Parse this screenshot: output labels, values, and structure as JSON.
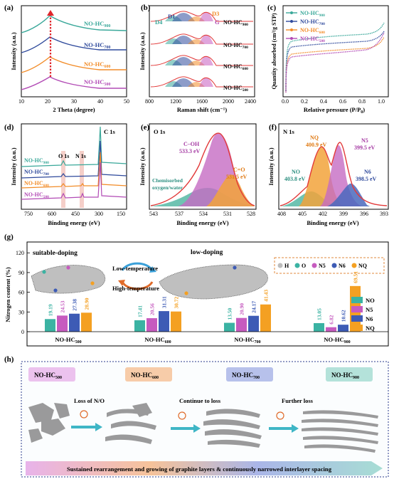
{
  "colors": {
    "hc500": "#b24bb5",
    "hc600": "#f28c28",
    "hc700": "#2f4a9c",
    "hc900": "#3aa89a",
    "NO": "#3bb3a3",
    "N5": "#c65bbf",
    "N6": "#3d5bb5",
    "NQ": "#f4a022",
    "fit": "#e23a3a"
  },
  "panel_a": {
    "letter": "(a)",
    "xlabel": "2 Theta (degree)",
    "ylabel": "Intensity (a.u.)",
    "xticks": [
      "10",
      "20",
      "30",
      "40",
      "50"
    ],
    "labels": [
      {
        "base": "NO-HC",
        "sub": "900"
      },
      {
        "base": "NO-HC",
        "sub": "700"
      },
      {
        "base": "NO-HC",
        "sub": "600"
      },
      {
        "base": "NO-HC",
        "sub": "500"
      }
    ]
  },
  "panel_b": {
    "letter": "(b)",
    "xlabel": "Raman shift (cm⁻¹)",
    "ylabel": "Intensity (a.u.)",
    "xticks": [
      "800",
      "1200",
      "1600",
      "2000",
      "2400"
    ],
    "peaks": [
      "D1",
      "D3",
      "D4",
      "G"
    ],
    "labels": [
      {
        "base": "NO-HC",
        "sub": "900"
      },
      {
        "base": "NO-HC",
        "sub": "700"
      },
      {
        "base": "NO-HC",
        "sub": "600"
      },
      {
        "base": "NO-HC",
        "sub": "500"
      }
    ]
  },
  "panel_c": {
    "letter": "(c)",
    "xlabel": "Relative pressure (P/P",
    "xlabel_sub": "0",
    "xlabel_end": ")",
    "ylabel": "Quantity absorbed (cm³/g STP)",
    "xticks": [
      "0.0",
      "0.2",
      "0.4",
      "0.6",
      "0.8",
      "1.0"
    ],
    "legend": [
      {
        "base": "NO-HC",
        "sub": "900"
      },
      {
        "base": "NO-HC",
        "sub": "700"
      },
      {
        "base": "NO-HC",
        "sub": "600"
      },
      {
        "base": "NO-HC",
        "sub": "500"
      }
    ]
  },
  "panel_d": {
    "letter": "(d)",
    "xlabel": "Binding energy (eV)",
    "ylabel": "Intensity (a.u.)",
    "xticks": [
      "750",
      "600",
      "450",
      "300",
      "150"
    ],
    "peaks": [
      "O 1s",
      "N 1s",
      "C 1s"
    ],
    "labels": [
      {
        "base": "NO-HC",
        "sub": "900"
      },
      {
        "base": "NO-HC",
        "sub": "700"
      },
      {
        "base": "NO-HC",
        "sub": "600"
      },
      {
        "base": "NO-HC",
        "sub": "500"
      }
    ]
  },
  "panel_e": {
    "letter": "(e)",
    "title": "O 1s",
    "xlabel": "Binding energy (eV)",
    "ylabel": "Intensity (a.u.)",
    "xticks": [
      "543",
      "537",
      "534",
      "531",
      "528"
    ],
    "annotations": {
      "coh": "C–OH",
      "coh_val": "533.3 eV",
      "co": "C=O",
      "co_val": "531.5 eV",
      "chem1": "Chemisorbed",
      "chem2": "oxygen/water"
    }
  },
  "panel_f": {
    "letter": "(f)",
    "title": "N 1s",
    "xlabel": "Binding energy (eV)",
    "ylabel": "Intensity (a.u.)",
    "xticks": [
      "408",
      "405",
      "402",
      "399",
      "396",
      "393"
    ],
    "annotations": {
      "nq": "NQ",
      "nq_val": "400.9 eV",
      "n5": "N5",
      "n5_val": "399.5 eV",
      "no": "NO",
      "no_val": "403.8 eV",
      "n6": "N6",
      "n6_val": "398.5 eV"
    }
  },
  "panel_g": {
    "letter": "(g)",
    "ylabel": "Nitrogen content (%)",
    "yticks": [
      "0",
      "30",
      "60",
      "90",
      "120"
    ],
    "suitable": "suitable-doping",
    "low": "low-doping",
    "low_temp": "Low-temperature",
    "high_temp": "High-temperature",
    "atom_legend": [
      "H",
      "O",
      "N5",
      "N6",
      "NQ"
    ]
  },
  "chart_data": {
    "type": "bar",
    "categories": [
      "NO-HC500",
      "NO-HC600",
      "NO-HC700",
      "NO-HC900"
    ],
    "series": [
      {
        "name": "NO",
        "values": [
          19.19,
          17.41,
          13.5,
          13.05
        ]
      },
      {
        "name": "N5",
        "values": [
          24.53,
          20.56,
          20.9,
          6.82
        ]
      },
      {
        "name": "N6",
        "values": [
          27.38,
          31.31,
          24.17,
          10.62
        ]
      },
      {
        "name": "NQ",
        "values": [
          28.9,
          30.72,
          41.43,
          69.51
        ]
      }
    ],
    "value_labels": {
      "NO": [
        "19.19",
        "17.41",
        "13.50",
        "13.05"
      ],
      "N5": [
        "24.53",
        "20.56",
        "20.90",
        "6.82"
      ],
      "N6": [
        "27.38",
        "31.31",
        "24.17",
        "10.62"
      ],
      "NQ": [
        "28.90",
        "30.72",
        "41.43",
        "69.51"
      ]
    },
    "ylabel": "Nitrogen content (%)",
    "ylim": [
      0,
      130
    ]
  },
  "panel_h": {
    "letter": "(h)",
    "stages": [
      {
        "base": "NO-HC",
        "sub": "500"
      },
      {
        "base": "NO-HC",
        "sub": "600"
      },
      {
        "base": "NO-HC",
        "sub": "700"
      },
      {
        "base": "NO-HC",
        "sub": "900"
      }
    ],
    "steps": [
      "Loss of N/O",
      "Continue to loss",
      "Further loss"
    ],
    "banner": "Sustained rearrangement and growing of graphite layers & continuously narrowed interlayer spacing"
  }
}
